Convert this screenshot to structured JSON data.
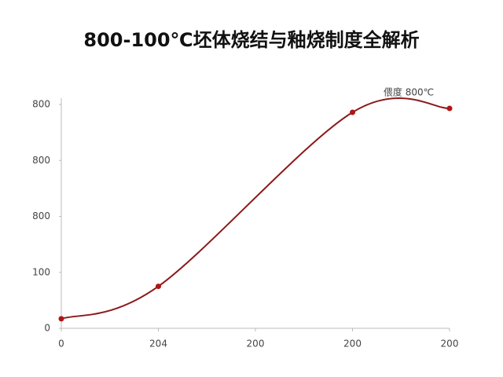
{
  "chart_data": {
    "type": "line",
    "title": "800-100℃坯体烧结与釉烧制度全解析",
    "annotation": "偎度 800℃",
    "x": [
      0,
      100,
      300,
      400
    ],
    "series": [
      {
        "color": "#8b1a1a",
        "marker_color": "#b01515",
        "values": [
          17,
          75,
          386,
          393
        ]
      }
    ],
    "xlim": [
      0,
      400
    ],
    "xticks": [
      0,
      {
        "value": 100,
        "label": "204"
      },
      200,
      {
        "value": 300,
        "label": "200"
      },
      {
        "value": 400,
        "label": "200"
      }
    ],
    "ylim": [
      0,
      400
    ],
    "yticks": [
      0,
      100,
      {
        "value": 200,
        "label": "800"
      },
      {
        "value": 300,
        "label": "800"
      },
      {
        "value": 400,
        "label": "800"
      }
    ],
    "grid": false
  }
}
